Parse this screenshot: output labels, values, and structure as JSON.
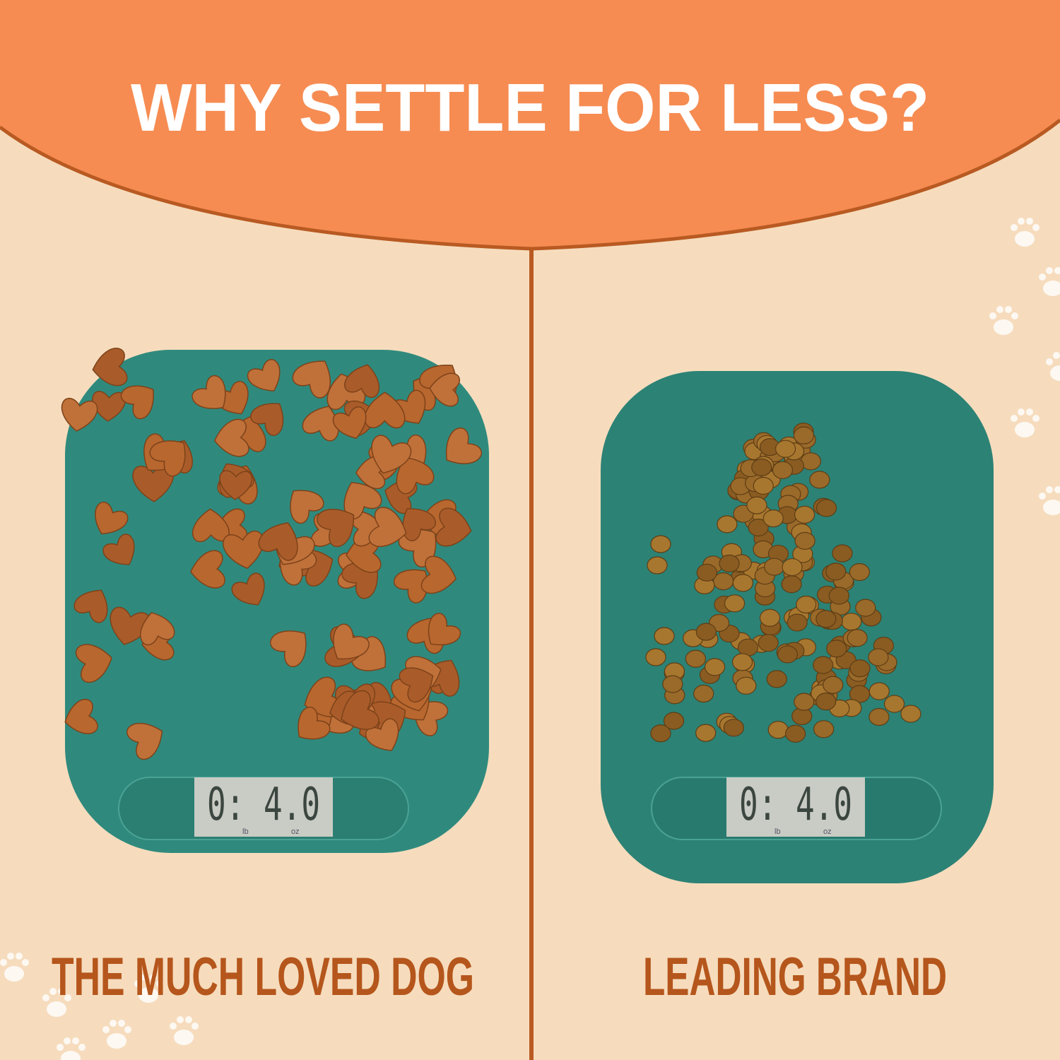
{
  "header": {
    "title": "WHY SETTLE FOR LESS?"
  },
  "panels": [
    {
      "label": "THE MUCH LOVED DOG",
      "display": {
        "reading": "0: 4.0",
        "unit_left": "lb",
        "unit_right": "oz"
      }
    },
    {
      "label": "LEADING BRAND",
      "display": {
        "reading": "0: 4.0",
        "unit_left": "lb",
        "unit_right": "oz"
      }
    }
  ]
}
